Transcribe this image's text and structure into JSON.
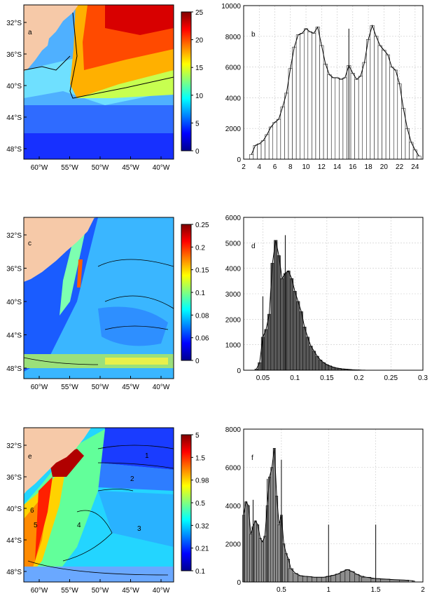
{
  "figure": {
    "colors": {
      "land": "#f6c9a8",
      "coast": "#000000",
      "bar_fill_b": "#ffffff",
      "bar_fill_d": "#5a5a5a",
      "bar_fill_f": "#8e8e8e",
      "grid": "#c8c8c8"
    },
    "colormap": [
      "#00008f",
      "#0000ff",
      "#0080ff",
      "#00ffff",
      "#80ff80",
      "#ffff00",
      "#ff8000",
      "#ff0000",
      "#800000"
    ],
    "maps": [
      {
        "panel": "a",
        "colorbar_ticks": [
          "25",
          "20",
          "15",
          "10",
          "5",
          "0"
        ],
        "lat_ticks": [
          "32°S",
          "36°S",
          "40°S",
          "44°S",
          "48°S"
        ],
        "lon_ticks": [
          "60°W",
          "55°W",
          "50°W",
          "45°W",
          "40°W"
        ],
        "region_labels": []
      },
      {
        "panel": "c",
        "colorbar_ticks": [
          "0.25",
          "0.2",
          "0.15",
          "0.1",
          "0.08",
          "0.06",
          "0"
        ],
        "lat_ticks": [
          "32°S",
          "36°S",
          "40°S",
          "44°S",
          "48°S"
        ],
        "lon_ticks": [
          "60°W",
          "55°W",
          "50°W",
          "45°W",
          "40°W"
        ],
        "region_labels": []
      },
      {
        "panel": "e",
        "colorbar_ticks": [
          "5",
          "1.5",
          "0.98",
          "0.5",
          "0.32",
          "0.21",
          "0.1"
        ],
        "lat_ticks": [
          "32°S",
          "36°S",
          "40°S",
          "44°S",
          "48°S"
        ],
        "lon_ticks": [
          "60°W",
          "55°W",
          "50°W",
          "45°W",
          "40°W"
        ],
        "region_labels": [
          "1",
          "2",
          "3",
          "4",
          "5",
          "6"
        ]
      }
    ]
  },
  "chart_data": [
    {
      "type": "bar",
      "panel": "b",
      "x": [
        3,
        3.5,
        4,
        4.5,
        5,
        5.5,
        6,
        6.5,
        7,
        7.5,
        8,
        8.5,
        9,
        9.5,
        10,
        10.5,
        11,
        11.5,
        12,
        12.5,
        13,
        13.5,
        14,
        14.5,
        15,
        15.5,
        16,
        16.5,
        17,
        17.5,
        18,
        18.5,
        19,
        19.5,
        20,
        20.5,
        21,
        21.5,
        22,
        22.5,
        23,
        23.5,
        24,
        24.5
      ],
      "values": [
        300,
        900,
        1000,
        1200,
        1600,
        2100,
        2400,
        2600,
        3400,
        4300,
        5900,
        7300,
        8100,
        8200,
        8500,
        8300,
        8200,
        8600,
        7400,
        6200,
        5500,
        5300,
        5300,
        5200,
        5300,
        6100,
        5600,
        5200,
        5400,
        6300,
        7800,
        8700,
        8000,
        7400,
        7100,
        6800,
        6000,
        5800,
        4900,
        3300,
        2000,
        1100,
        600,
        200
      ],
      "markers": [
        {
          "x": 15.5,
          "y": 8500
        }
      ],
      "xlim": [
        2,
        25
      ],
      "ylim": [
        0,
        10000
      ],
      "xticks": [
        "2",
        "4",
        "6",
        "8",
        "10",
        "12",
        "14",
        "16",
        "18",
        "20",
        "22",
        "24"
      ],
      "yticks": [
        "0",
        "2000",
        "4000",
        "6000",
        "8000",
        "10000"
      ],
      "grid": true
    },
    {
      "type": "bar",
      "panel": "d",
      "x": [
        0.04,
        0.045,
        0.05,
        0.055,
        0.06,
        0.065,
        0.07,
        0.075,
        0.08,
        0.085,
        0.09,
        0.095,
        0.1,
        0.105,
        0.11,
        0.115,
        0.12,
        0.125,
        0.13,
        0.135,
        0.14,
        0.145,
        0.15,
        0.155,
        0.16,
        0.165,
        0.17,
        0.175,
        0.18,
        0.185,
        0.19,
        0.195,
        0.2,
        0.205,
        0.21
      ],
      "values": [
        50,
        300,
        1300,
        1600,
        2200,
        4200,
        5100,
        4500,
        3600,
        3800,
        3900,
        3600,
        3100,
        2700,
        2300,
        1700,
        1300,
        950,
        750,
        550,
        400,
        300,
        220,
        170,
        120,
        90,
        70,
        50,
        40,
        30,
        20,
        15,
        10,
        5,
        3
      ],
      "markers": [
        {
          "x": 0.05,
          "y": 2900
        },
        {
          "x": 0.085,
          "y": 5300
        }
      ],
      "xlim": [
        0.02,
        0.3
      ],
      "ylim": [
        0,
        6000
      ],
      "xticks": [
        "0.05",
        "0.1",
        "0.15",
        "0.2",
        "0.25",
        "0.3"
      ],
      "yticks": [
        "0",
        "1000",
        "2000",
        "3000",
        "4000",
        "5000",
        "6000"
      ],
      "grid": true
    },
    {
      "type": "bar",
      "panel": "f",
      "x": [
        0.1,
        0.125,
        0.15,
        0.175,
        0.2,
        0.225,
        0.25,
        0.275,
        0.3,
        0.325,
        0.35,
        0.375,
        0.4,
        0.425,
        0.45,
        0.475,
        0.5,
        0.525,
        0.55,
        0.575,
        0.6,
        0.65,
        0.7,
        0.75,
        0.8,
        0.85,
        0.9,
        0.95,
        1.0,
        1.05,
        1.1,
        1.15,
        1.2,
        1.25,
        1.3,
        1.35,
        1.4,
        1.5,
        1.6,
        1.7,
        1.8,
        1.9
      ],
      "values": [
        3500,
        4200,
        4000,
        2500,
        2900,
        3200,
        3000,
        2300,
        2100,
        2400,
        4000,
        5500,
        6000,
        7000,
        4500,
        3000,
        3500,
        2000,
        1500,
        1200,
        700,
        450,
        330,
        300,
        280,
        250,
        250,
        250,
        300,
        350,
        420,
        550,
        650,
        550,
        400,
        300,
        250,
        180,
        150,
        120,
        100,
        60
      ],
      "markers": [
        {
          "x": 0.2,
          "y": 4300
        },
        {
          "x": 0.35,
          "y": 5400
        },
        {
          "x": 0.5,
          "y": 6400
        },
        {
          "x": 1.0,
          "y": 3000
        },
        {
          "x": 1.5,
          "y": 3000
        }
      ],
      "xlim": [
        0.1,
        2
      ],
      "ylim": [
        0,
        8000
      ],
      "xticks": [
        "0.5",
        "1",
        "1.5",
        "2"
      ],
      "yticks": [
        "0",
        "2000",
        "4000",
        "6000",
        "8000"
      ],
      "grid": true
    }
  ]
}
